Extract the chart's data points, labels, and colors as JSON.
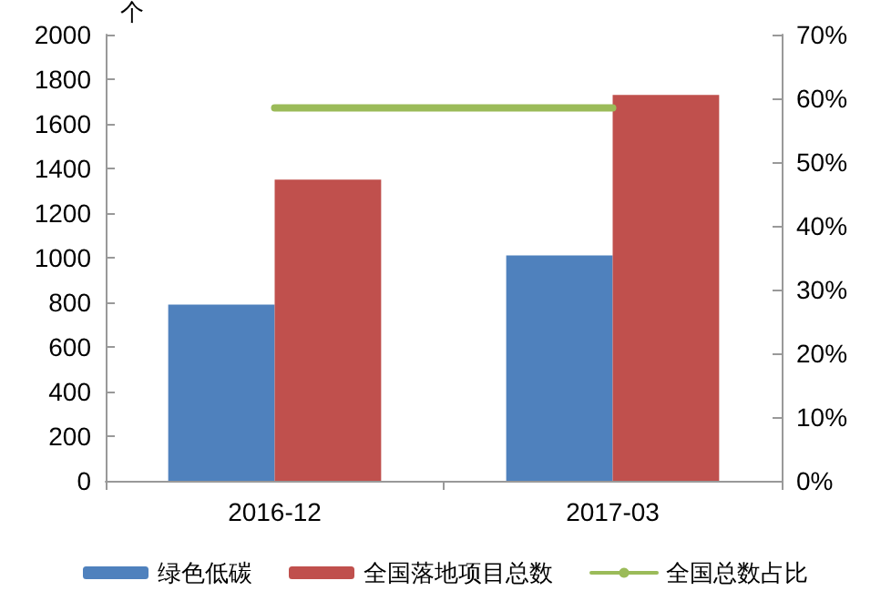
{
  "chart_data": {
    "type": "bar",
    "ylabel": "个",
    "categories": [
      "2016-12",
      "2017-03"
    ],
    "series": [
      {
        "name": "绿色低碳",
        "color": "#4f81bd",
        "values": [
          790,
          1010
        ]
      },
      {
        "name": "全国落地项目总数",
        "color": "#c0504d",
        "values": [
          1350,
          1730
        ]
      },
      {
        "name": "全国总数占比",
        "color": "#9bbb59",
        "type": "line",
        "axis": "y2",
        "values": [
          58.5,
          58.5
        ]
      }
    ],
    "ylim": [
      0,
      2000
    ],
    "yticks": [
      0,
      200,
      400,
      600,
      800,
      1000,
      1200,
      1400,
      1600,
      1800,
      2000
    ],
    "y2lim": [
      0,
      70
    ],
    "y2ticks": [
      {
        "value": 0,
        "label": "0%"
      },
      {
        "value": 10,
        "label": "10%"
      },
      {
        "value": 20,
        "label": "20%"
      },
      {
        "value": 30,
        "label": "30%"
      },
      {
        "value": 40,
        "label": "40%"
      },
      {
        "value": 50,
        "label": "50%"
      },
      {
        "value": 60,
        "label": "60%"
      },
      {
        "value": 70,
        "label": "70%"
      }
    ],
    "grid": false,
    "legend": "bottom",
    "marker": "none",
    "line_style": "solid"
  }
}
